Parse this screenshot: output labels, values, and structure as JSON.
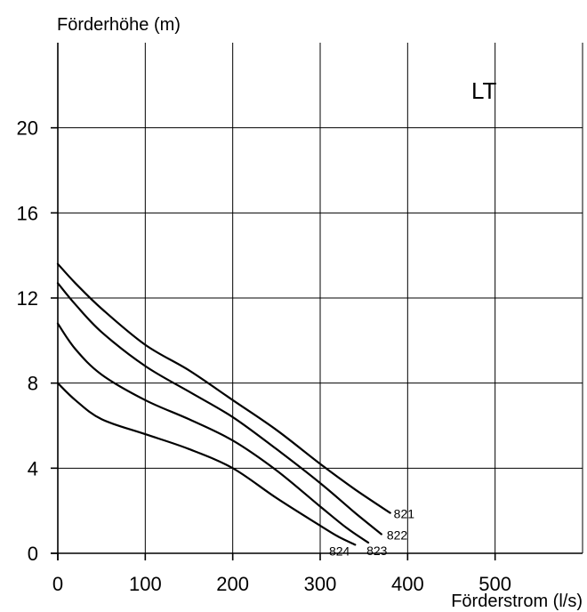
{
  "chart_data": {
    "type": "line",
    "title": "",
    "corner_label": "LT",
    "xlabel": "Förderstrom (l/s)",
    "ylabel": "Förderhöhe (m)",
    "xlim": [
      0,
      600
    ],
    "ylim": [
      0,
      24
    ],
    "x_ticks": [
      0,
      100,
      200,
      300,
      400,
      500
    ],
    "y_ticks": [
      0,
      4,
      8,
      12,
      16,
      20
    ],
    "grid": true,
    "series": [
      {
        "name": "821",
        "points": [
          [
            0,
            13.6
          ],
          [
            20,
            12.7
          ],
          [
            50,
            11.5
          ],
          [
            100,
            9.8
          ],
          [
            150,
            8.6
          ],
          [
            200,
            7.2
          ],
          [
            250,
            5.8
          ],
          [
            300,
            4.2
          ],
          [
            340,
            3.0
          ],
          [
            380,
            1.9
          ]
        ]
      },
      {
        "name": "822",
        "points": [
          [
            0,
            12.7
          ],
          [
            20,
            11.7
          ],
          [
            50,
            10.4
          ],
          [
            100,
            8.8
          ],
          [
            150,
            7.6
          ],
          [
            200,
            6.4
          ],
          [
            250,
            4.9
          ],
          [
            300,
            3.3
          ],
          [
            340,
            1.9
          ],
          [
            370,
            0.9
          ]
        ]
      },
      {
        "name": "823",
        "points": [
          [
            0,
            10.8
          ],
          [
            20,
            9.6
          ],
          [
            50,
            8.4
          ],
          [
            100,
            7.2
          ],
          [
            150,
            6.3
          ],
          [
            200,
            5.3
          ],
          [
            250,
            3.9
          ],
          [
            300,
            2.2
          ],
          [
            330,
            1.2
          ],
          [
            355,
            0.5
          ]
        ]
      },
      {
        "name": "824",
        "points": [
          [
            0,
            8.0
          ],
          [
            20,
            7.2
          ],
          [
            50,
            6.3
          ],
          [
            100,
            5.6
          ],
          [
            150,
            4.9
          ],
          [
            200,
            4.0
          ],
          [
            250,
            2.6
          ],
          [
            300,
            1.3
          ],
          [
            320,
            0.8
          ],
          [
            340,
            0.4
          ]
        ]
      }
    ]
  }
}
